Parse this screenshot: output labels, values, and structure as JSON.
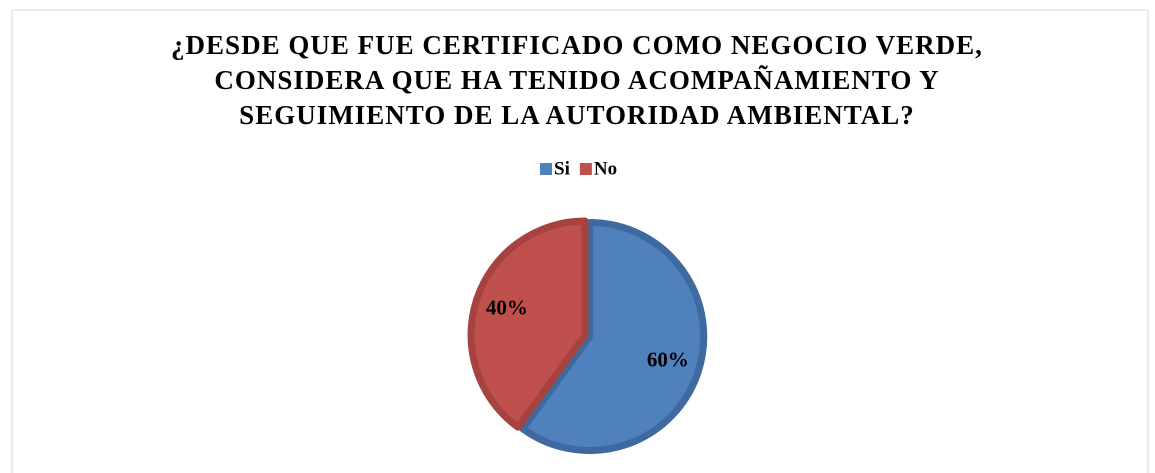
{
  "chart_data": {
    "type": "pie",
    "title": [
      "¿DESDE QUE FUE CERTIFICADO COMO NEGOCIO VERDE,",
      "CONSIDERA QUE HA TENIDO ACOMPAÑAMIENTO Y",
      "SEGUIMIENTO DE LA AUTORIDAD AMBIENTAL?"
    ],
    "categories": [
      "Si",
      "No"
    ],
    "values": [
      60,
      40
    ],
    "value_labels": [
      "60%",
      "40%"
    ],
    "colors": [
      "#4f81bd",
      "#c0504d"
    ],
    "edge_colors": [
      "#3e6aa0",
      "#a6423f"
    ],
    "legend": "top"
  }
}
